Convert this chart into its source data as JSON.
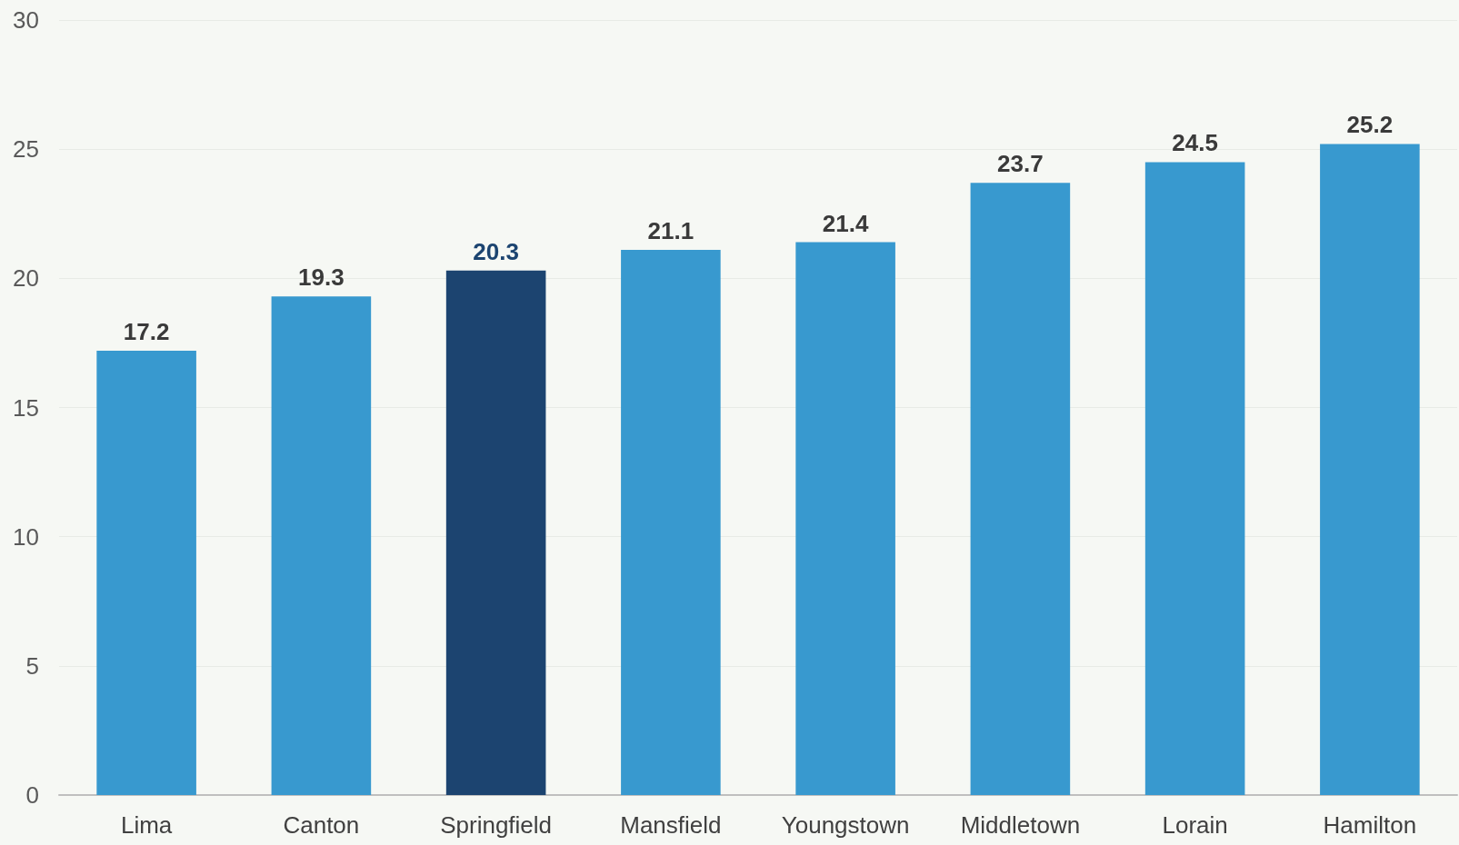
{
  "chart_data": {
    "type": "bar",
    "categories": [
      "Lima",
      "Canton",
      "Springfield",
      "Mansfield",
      "Youngstown",
      "Middletown",
      "Lorain",
      "Hamilton"
    ],
    "values": [
      17.2,
      19.3,
      20.3,
      21.1,
      21.4,
      23.7,
      24.5,
      25.2
    ],
    "colors": [
      "#3899cf",
      "#3899cf",
      "#1c4470",
      "#3899cf",
      "#3899cf",
      "#3899cf",
      "#3899cf",
      "#3899cf"
    ],
    "ylim": [
      0,
      30
    ],
    "yticks": [
      0,
      5,
      10,
      15,
      20,
      25,
      30
    ],
    "grid": "y",
    "data_labels": true
  }
}
